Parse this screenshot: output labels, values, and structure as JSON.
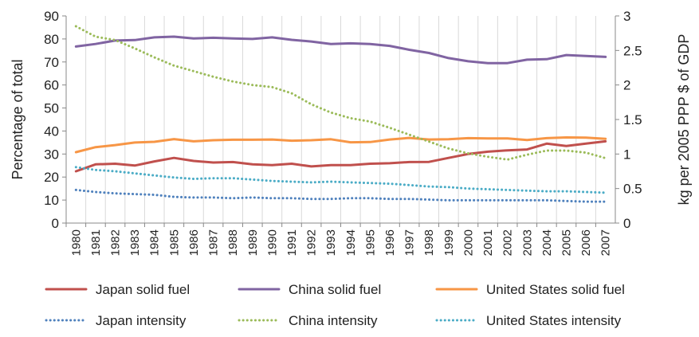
{
  "chart_data": {
    "type": "line",
    "x": [
      1980,
      1981,
      1982,
      1983,
      1984,
      1985,
      1986,
      1987,
      1988,
      1989,
      1990,
      1991,
      1992,
      1993,
      1994,
      1995,
      1996,
      1997,
      1998,
      1999,
      2000,
      2001,
      2002,
      2003,
      2004,
      2005,
      2006,
      2007
    ],
    "x_tick_labels": [
      "1980",
      "1981",
      "1982",
      "1983",
      "1984",
      "1985",
      "1986",
      "1987",
      "1988",
      "1989",
      "1990",
      "1991",
      "1992",
      "1993",
      "1994",
      "1995",
      "1996",
      "1997",
      "1998",
      "1999",
      "2000",
      "2001",
      "2002",
      "2003",
      "2004",
      "2005",
      "2006",
      "2007"
    ],
    "ylabel_left": "Percentage of total",
    "ylabel_right": "kg per 2005 PPP $ of GDP",
    "ylim_left": [
      0,
      90
    ],
    "ylim_right": [
      0,
      3
    ],
    "yticks_left": [
      "0",
      "10",
      "20",
      "30",
      "40",
      "50",
      "60",
      "70",
      "80",
      "90"
    ],
    "yticks_right": [
      "0",
      "0.5",
      "1",
      "1.5",
      "2",
      "2.5",
      "3"
    ],
    "grid": "vertical",
    "legend_position": "bottom",
    "series": [
      {
        "name": "Japan solid fuel",
        "axis": "left",
        "style": "solid",
        "color": "#c0504d",
        "values": [
          22.5,
          25.5,
          25.8,
          25,
          26.8,
          28.3,
          27,
          26.3,
          26.5,
          25.5,
          25.2,
          25.8,
          24.6,
          25.2,
          25.2,
          25.8,
          26,
          26.5,
          26.6,
          28.3,
          30,
          31,
          31.6,
          32,
          34.5,
          33.5,
          34.5,
          35.5
        ]
      },
      {
        "name": "China solid fuel",
        "axis": "left",
        "style": "solid",
        "color": "#8064a2",
        "values": [
          76.7,
          77.8,
          79.3,
          79.5,
          80.7,
          81,
          80.2,
          80.5,
          80.2,
          80,
          80.7,
          79.6,
          78.9,
          77.8,
          78.1,
          77.8,
          77,
          75.3,
          73.9,
          71.7,
          70.3,
          69.5,
          69.5,
          71,
          71.2,
          73,
          72.6,
          72.2
        ]
      },
      {
        "name": "United States solid fuel",
        "axis": "left",
        "style": "solid",
        "color": "#f79646",
        "values": [
          30.8,
          33,
          33.9,
          35,
          35.3,
          36.5,
          35.5,
          36,
          36.2,
          36.2,
          36.3,
          35.8,
          36,
          36.4,
          35.1,
          35.2,
          36.3,
          37,
          36.3,
          36.4,
          36.9,
          36.8,
          36.8,
          36.1,
          36.9,
          37.2,
          37.1,
          36.6
        ]
      },
      {
        "name": "Japan intensity",
        "axis": "right",
        "style": "dotted",
        "color": "#4f81bd",
        "values": [
          0.48,
          0.45,
          0.43,
          0.42,
          0.41,
          0.38,
          0.37,
          0.37,
          0.36,
          0.37,
          0.36,
          0.36,
          0.35,
          0.35,
          0.36,
          0.36,
          0.35,
          0.35,
          0.34,
          0.33,
          0.33,
          0.33,
          0.33,
          0.33,
          0.33,
          0.32,
          0.31,
          0.31
        ]
      },
      {
        "name": "China intensity",
        "axis": "right",
        "style": "dotted",
        "color": "#9bbb59",
        "values": [
          2.85,
          2.7,
          2.65,
          2.53,
          2.4,
          2.28,
          2.2,
          2.12,
          2.05,
          2,
          1.97,
          1.88,
          1.72,
          1.6,
          1.52,
          1.47,
          1.38,
          1.28,
          1.18,
          1.08,
          1.01,
          0.96,
          0.92,
          0.99,
          1.05,
          1.05,
          1.02,
          0.94
        ]
      },
      {
        "name": "United States intensity",
        "axis": "right",
        "style": "dotted",
        "color": "#4bacc6",
        "values": [
          0.81,
          0.77,
          0.75,
          0.72,
          0.69,
          0.66,
          0.64,
          0.65,
          0.65,
          0.63,
          0.61,
          0.6,
          0.59,
          0.6,
          0.59,
          0.58,
          0.57,
          0.55,
          0.53,
          0.52,
          0.5,
          0.49,
          0.48,
          0.47,
          0.46,
          0.46,
          0.45,
          0.44
        ]
      }
    ]
  }
}
